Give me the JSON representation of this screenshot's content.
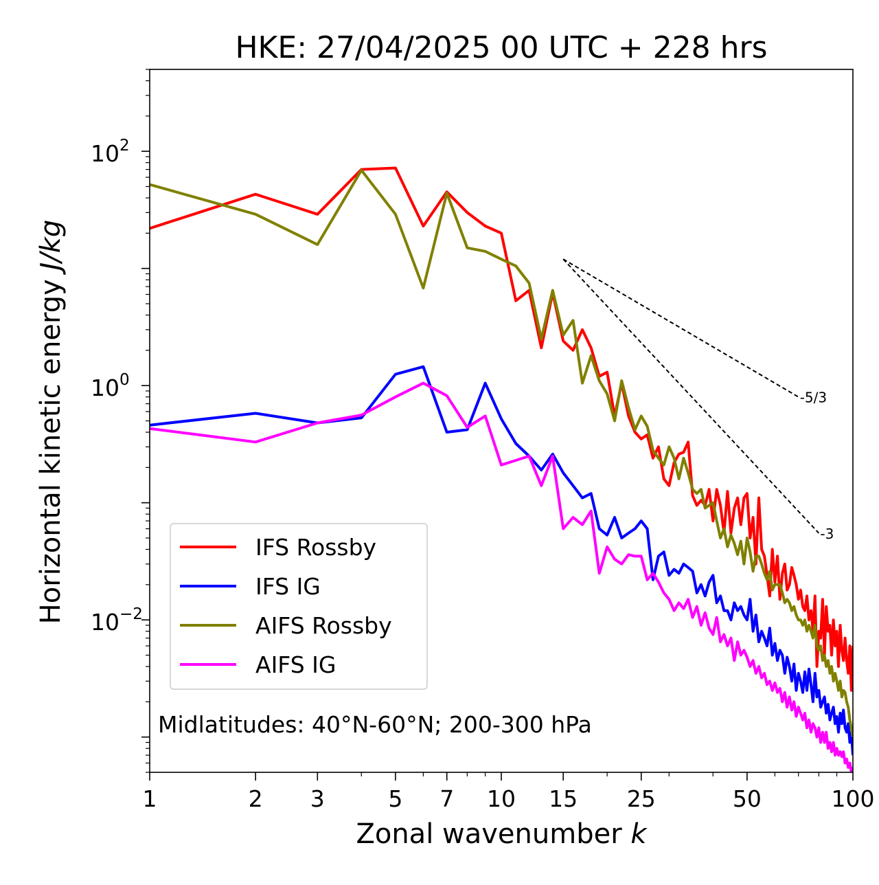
{
  "chart_data": {
    "type": "line",
    "title": "HKE: 27/04/2025 00 UTC + 228 hrs",
    "xlabel_text": "Zonal wavenumber ",
    "xlabel_var": "k",
    "ylabel_text": "Horizontal kinetic energy ",
    "ylabel_var": "J/kg",
    "x_scale": "log",
    "y_scale": "log",
    "xlim": [
      1,
      100
    ],
    "ylim": [
      0.0005,
      500
    ],
    "grid": false,
    "legend_position": "lower-left",
    "x_ticks": [
      {
        "value": 1,
        "label": "1"
      },
      {
        "value": 2,
        "label": "2"
      },
      {
        "value": 3,
        "label": "3"
      },
      {
        "value": 5,
        "label": "5"
      },
      {
        "value": 7,
        "label": "7"
      },
      {
        "value": 10,
        "label": "10"
      },
      {
        "value": 15,
        "label": "15"
      },
      {
        "value": 25,
        "label": "25"
      },
      {
        "value": 50,
        "label": "50"
      },
      {
        "value": 100,
        "label": "100"
      }
    ],
    "y_ticks": [
      {
        "value": 100,
        "base": "10",
        "exp": "2"
      },
      {
        "value": 1,
        "base": "10",
        "exp": "0"
      },
      {
        "value": 0.01,
        "base": "10",
        "exp": "−2"
      }
    ],
    "annotation": "Midlatitudes: 40°N-60°N; 200-300 hPa",
    "reference_lines": [
      {
        "label": "-5/3",
        "x": [
          15,
          70
        ],
        "y": [
          12,
          0.8
        ],
        "color": "#000000"
      },
      {
        "label": "-3",
        "x": [
          15,
          80
        ],
        "y": [
          12,
          0.055
        ],
        "color": "#000000"
      }
    ],
    "series": [
      {
        "name": "IFS Rossby",
        "color": "#ff0000",
        "x": [
          1,
          2,
          3,
          4,
          5,
          6,
          7,
          8,
          9,
          10,
          11,
          12,
          13,
          14,
          15,
          16,
          17,
          18,
          19,
          20,
          21,
          22,
          23,
          24,
          25,
          26,
          27,
          28,
          29,
          30,
          31,
          32,
          33,
          34,
          35,
          36,
          37,
          38,
          39,
          40,
          41,
          42,
          43,
          44,
          45,
          46,
          47,
          48,
          49,
          50,
          51,
          52,
          53,
          54,
          55,
          56,
          57,
          58,
          59,
          60,
          61,
          62,
          63,
          64,
          65,
          66,
          67,
          68,
          69,
          70,
          71,
          72,
          73,
          74,
          75,
          76,
          77,
          78,
          79,
          80,
          81,
          82,
          83,
          84,
          85,
          86,
          87,
          88,
          89,
          90,
          91,
          92,
          93,
          94,
          95,
          96,
          97,
          98,
          99,
          100
        ],
        "y": [
          22,
          43,
          29,
          70,
          72,
          23,
          45,
          30,
          23,
          20,
          5.3,
          6.5,
          2.1,
          6.2,
          2.4,
          2.0,
          3.0,
          2.1,
          1.2,
          1.3,
          0.55,
          1.05,
          0.55,
          0.4,
          0.35,
          0.38,
          0.24,
          0.3,
          0.16,
          0.14,
          0.22,
          0.26,
          0.27,
          0.33,
          0.115,
          0.095,
          0.105,
          0.095,
          0.13,
          0.07,
          0.13,
          0.095,
          0.055,
          0.125,
          0.055,
          0.09,
          0.11,
          0.065,
          0.11,
          0.12,
          0.05,
          0.075,
          0.03,
          0.11,
          0.04,
          0.035,
          0.024,
          0.016,
          0.04,
          0.021,
          0.035,
          0.015,
          0.025,
          0.03,
          0.018,
          0.02,
          0.028,
          0.024,
          0.02,
          0.015,
          0.018,
          0.013,
          0.012,
          0.016,
          0.01,
          0.012,
          0.008,
          0.016,
          0.004,
          0.008,
          0.007,
          0.015,
          0.005,
          0.013,
          0.008,
          0.009,
          0.005,
          0.01,
          0.006,
          0.008,
          0.004,
          0.009,
          0.0055,
          0.0045,
          0.007,
          0.0045,
          0.0035,
          0.006,
          0.0025,
          0.006
        ]
      },
      {
        "name": "IFS IG",
        "color": "#0000ff",
        "x": [
          1,
          2,
          3,
          4,
          5,
          6,
          7,
          8,
          9,
          10,
          11,
          12,
          13,
          14,
          15,
          16,
          17,
          18,
          19,
          20,
          21,
          22,
          23,
          24,
          25,
          26,
          27,
          28,
          29,
          30,
          31,
          32,
          33,
          34,
          35,
          36,
          37,
          38,
          39,
          40,
          41,
          42,
          43,
          44,
          45,
          46,
          47,
          48,
          49,
          50,
          51,
          52,
          53,
          54,
          55,
          56,
          57,
          58,
          59,
          60,
          61,
          62,
          63,
          64,
          65,
          66,
          67,
          68,
          69,
          70,
          71,
          72,
          73,
          74,
          75,
          76,
          77,
          78,
          79,
          80,
          81,
          82,
          83,
          84,
          85,
          86,
          87,
          88,
          89,
          90,
          91,
          92,
          93,
          94,
          95,
          96,
          97,
          98,
          99,
          100
        ],
        "y": [
          0.46,
          0.58,
          0.48,
          0.53,
          1.25,
          1.45,
          0.4,
          0.42,
          1.05,
          0.52,
          0.32,
          0.25,
          0.19,
          0.26,
          0.18,
          0.14,
          0.11,
          0.12,
          0.06,
          0.053,
          0.075,
          0.05,
          0.055,
          0.06,
          0.07,
          0.06,
          0.022,
          0.035,
          0.038,
          0.024,
          0.027,
          0.025,
          0.03,
          0.028,
          0.026,
          0.017,
          0.02,
          0.016,
          0.021,
          0.024,
          0.014,
          0.016,
          0.012,
          0.012,
          0.01,
          0.014,
          0.012,
          0.013,
          0.011,
          0.01,
          0.015,
          0.008,
          0.011,
          0.0065,
          0.008,
          0.007,
          0.006,
          0.0085,
          0.005,
          0.0063,
          0.0045,
          0.0055,
          0.005,
          0.0035,
          0.0048,
          0.004,
          0.003,
          0.0042,
          0.0025,
          0.0035,
          0.003,
          0.0024,
          0.0036,
          0.0025,
          0.0038,
          0.0028,
          0.002,
          0.0035,
          0.0022,
          0.0025,
          0.0018,
          0.002,
          0.0022,
          0.0016,
          0.0019,
          0.0014,
          0.0016,
          0.0018,
          0.0013,
          0.0015,
          0.0011,
          0.0016,
          0.0013,
          0.0017,
          0.0012,
          0.0011,
          0.0013,
          0.0009,
          0.0011,
          0.0007
        ]
      },
      {
        "name": "AIFS Rossby",
        "color": "#808000",
        "x": [
          1,
          2,
          3,
          4,
          5,
          6,
          7,
          8,
          9,
          10,
          11,
          12,
          13,
          14,
          15,
          16,
          17,
          18,
          19,
          20,
          21,
          22,
          23,
          24,
          25,
          26,
          27,
          28,
          29,
          30,
          31,
          32,
          33,
          34,
          35,
          36,
          37,
          38,
          39,
          40,
          41,
          42,
          43,
          44,
          45,
          46,
          47,
          48,
          49,
          50,
          51,
          52,
          53,
          54,
          55,
          56,
          57,
          58,
          59,
          60,
          61,
          62,
          63,
          64,
          65,
          66,
          67,
          68,
          69,
          70,
          71,
          72,
          73,
          74,
          75,
          76,
          77,
          78,
          79,
          80,
          81,
          82,
          83,
          84,
          85,
          86,
          87,
          88,
          89,
          90,
          91,
          92,
          93,
          94,
          95,
          96,
          97,
          98,
          99,
          100
        ],
        "y": [
          52,
          29,
          16,
          69,
          29,
          6.8,
          44,
          15,
          14,
          12,
          10.5,
          7.5,
          2.5,
          6.5,
          2.7,
          3.6,
          1.05,
          1.8,
          1.1,
          0.85,
          0.5,
          1.1,
          0.65,
          0.42,
          0.55,
          0.45,
          0.28,
          0.24,
          0.21,
          0.3,
          0.24,
          0.16,
          0.24,
          0.18,
          0.13,
          0.12,
          0.13,
          0.09,
          0.095,
          0.1,
          0.07,
          0.05,
          0.06,
          0.042,
          0.053,
          0.045,
          0.036,
          0.047,
          0.03,
          0.05,
          0.038,
          0.026,
          0.035,
          0.035,
          0.03,
          0.025,
          0.022,
          0.026,
          0.018,
          0.02,
          0.02,
          0.02,
          0.017,
          0.014,
          0.015,
          0.014,
          0.012,
          0.013,
          0.011,
          0.01,
          0.01,
          0.009,
          0.01,
          0.008,
          0.009,
          0.008,
          0.007,
          0.009,
          0.006,
          0.0055,
          0.006,
          0.0045,
          0.005,
          0.004,
          0.0045,
          0.0035,
          0.004,
          0.003,
          0.0035,
          0.003,
          0.0025,
          0.003,
          0.0022,
          0.0025,
          0.0024,
          0.002,
          0.0018,
          0.0014,
          0.0012,
          0.001
        ]
      },
      {
        "name": "AIFS IG",
        "color": "#ff00ff",
        "x": [
          1,
          2,
          3,
          4,
          5,
          6,
          7,
          8,
          9,
          10,
          11,
          12,
          13,
          14,
          15,
          16,
          17,
          18,
          19,
          20,
          21,
          22,
          23,
          24,
          25,
          26,
          27,
          28,
          29,
          30,
          31,
          32,
          33,
          34,
          35,
          36,
          37,
          38,
          39,
          40,
          41,
          42,
          43,
          44,
          45,
          46,
          47,
          48,
          49,
          50,
          51,
          52,
          53,
          54,
          55,
          56,
          57,
          58,
          59,
          60,
          61,
          62,
          63,
          64,
          65,
          66,
          67,
          68,
          69,
          70,
          71,
          72,
          73,
          74,
          75,
          76,
          77,
          78,
          79,
          80,
          81,
          82,
          83,
          84,
          85,
          86,
          87,
          88,
          89,
          90,
          91,
          92,
          93,
          94,
          95,
          96,
          97,
          98,
          99,
          100
        ],
        "y": [
          0.43,
          0.33,
          0.48,
          0.56,
          0.8,
          1.05,
          0.82,
          0.44,
          0.55,
          0.21,
          0.23,
          0.25,
          0.14,
          0.25,
          0.06,
          0.075,
          0.065,
          0.085,
          0.025,
          0.042,
          0.033,
          0.03,
          0.036,
          0.035,
          0.035,
          0.022,
          0.025,
          0.021,
          0.017,
          0.015,
          0.012,
          0.014,
          0.0125,
          0.015,
          0.0105,
          0.013,
          0.009,
          0.0115,
          0.0085,
          0.0075,
          0.0105,
          0.0065,
          0.0075,
          0.006,
          0.007,
          0.0045,
          0.0065,
          0.005,
          0.0055,
          0.0048,
          0.004,
          0.0045,
          0.0035,
          0.004,
          0.0032,
          0.0035,
          0.0028,
          0.003,
          0.0025,
          0.0029,
          0.0024,
          0.0026,
          0.002,
          0.0024,
          0.0018,
          0.0022,
          0.0017,
          0.002,
          0.0015,
          0.0018,
          0.0016,
          0.0014,
          0.0016,
          0.0012,
          0.0014,
          0.0011,
          0.0013,
          0.0012,
          0.001,
          0.0012,
          0.0009,
          0.0011,
          0.0009,
          0.0011,
          0.0008,
          0.0009,
          0.00075,
          0.0009,
          0.0007,
          0.0008,
          0.0007,
          0.00075,
          0.00068,
          0.00075,
          0.0006,
          0.00065,
          0.00055,
          0.0006,
          0.0005,
          0.00055
        ]
      }
    ]
  }
}
